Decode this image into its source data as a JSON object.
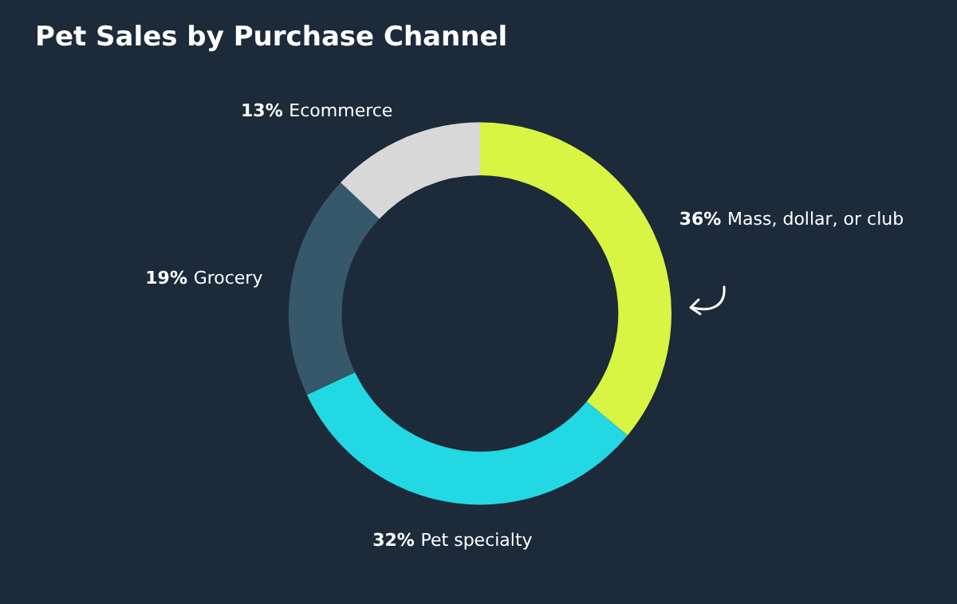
{
  "chart_data": {
    "type": "donut",
    "title": "Pet Sales by Purchase Channel",
    "categories": [
      "Mass, dollar, or club",
      "Pet specialty",
      "Grocery",
      "Ecommerce"
    ],
    "values": [
      36,
      32,
      19,
      13
    ],
    "value_labels": [
      "36%",
      "32%",
      "19%",
      "13%"
    ],
    "colors": [
      "#d7f542",
      "#22d8e2",
      "#35586a",
      "#d8d8d8"
    ],
    "legend": false
  }
}
